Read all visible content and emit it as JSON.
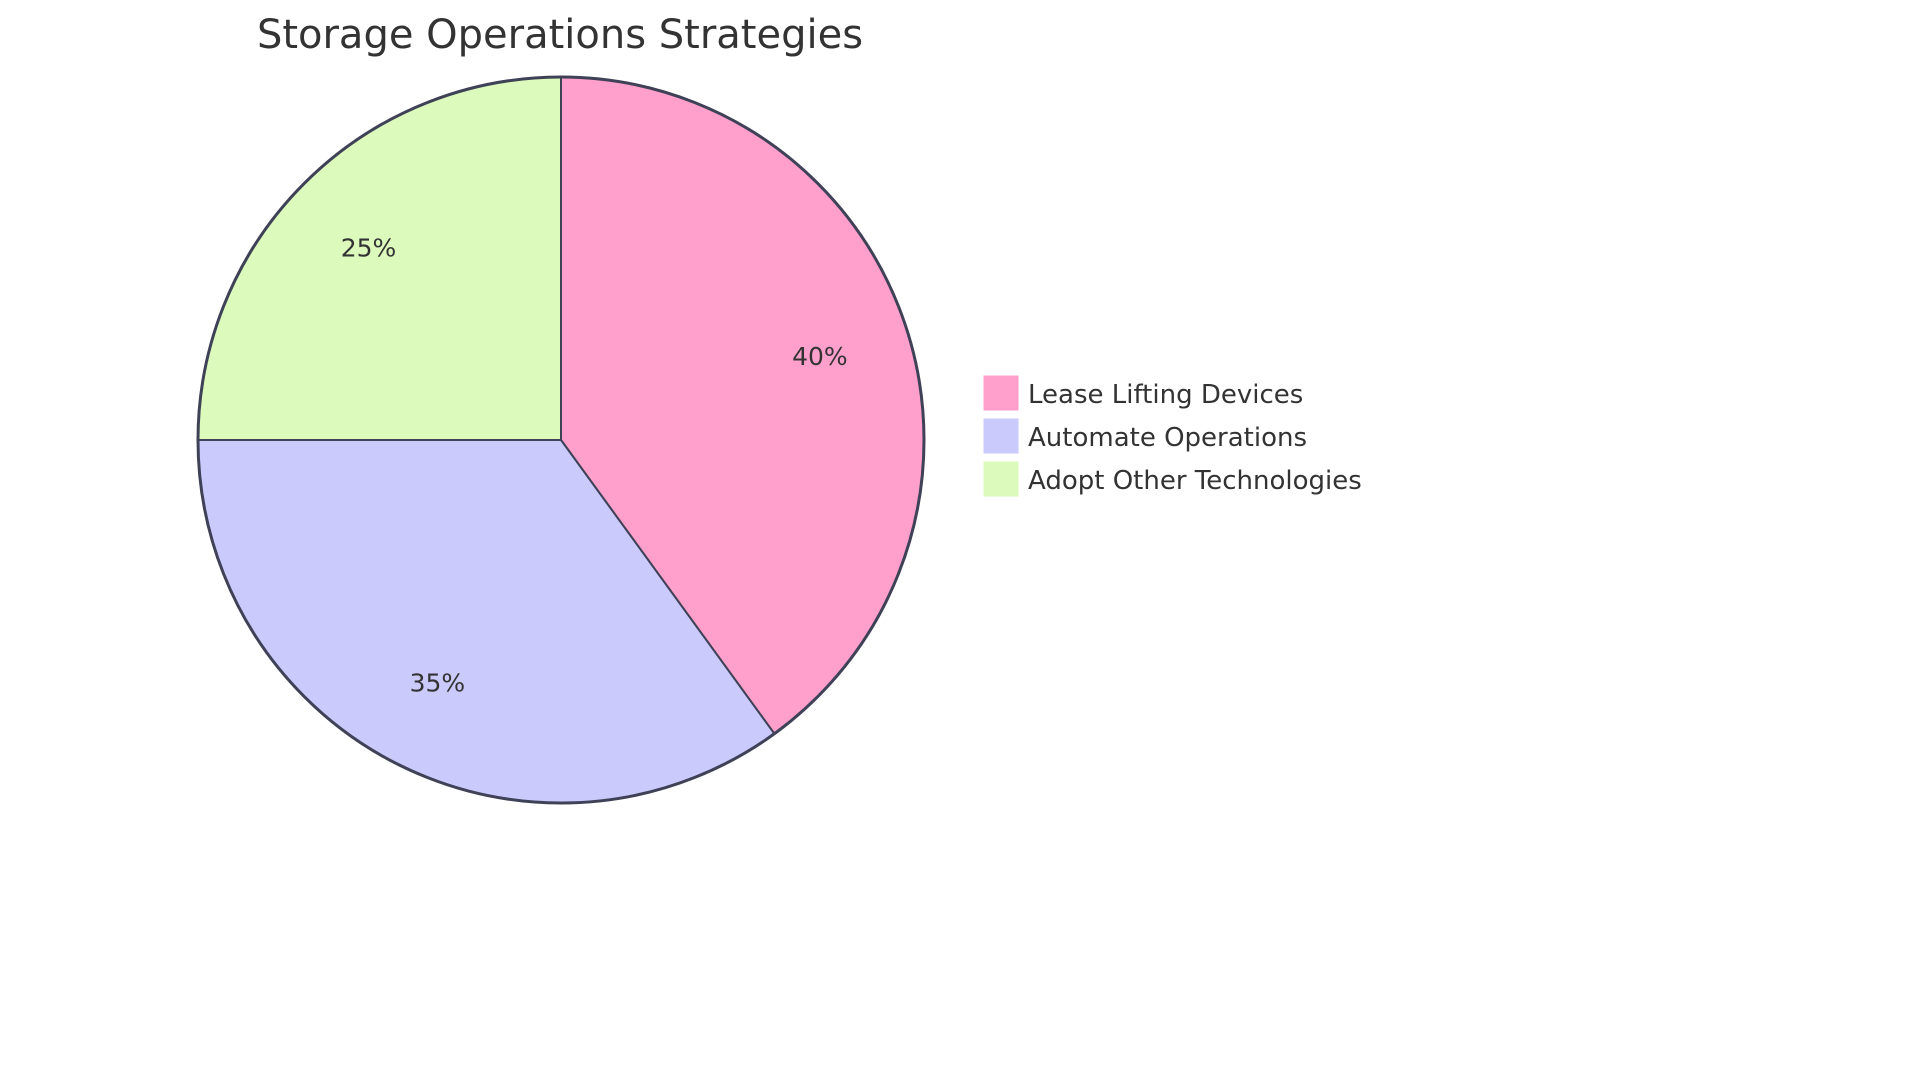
{
  "chart_data": {
    "type": "pie",
    "title": "Storage Operations Strategies",
    "categories": [
      "Lease Lifting Devices",
      "Automate Operations",
      "Adopt Other Technologies"
    ],
    "values": [
      40,
      35,
      25
    ],
    "labels": [
      "40%",
      "35%",
      "25%"
    ],
    "colors": [
      "#FFA0CC",
      "#CACAFD",
      "#DCFABC"
    ],
    "stroke_color": "#3F4157",
    "legend_position": "right",
    "start_angle_deg": 0,
    "direction": "clockwise"
  },
  "title": "Storage Operations Strategies",
  "legend": {
    "items": [
      {
        "label": "Lease Lifting Devices",
        "color": "#FFA0CC"
      },
      {
        "label": "Automate Operations",
        "color": "#CACAFD"
      },
      {
        "label": "Adopt Other Technologies",
        "color": "#DCFABC"
      }
    ]
  }
}
